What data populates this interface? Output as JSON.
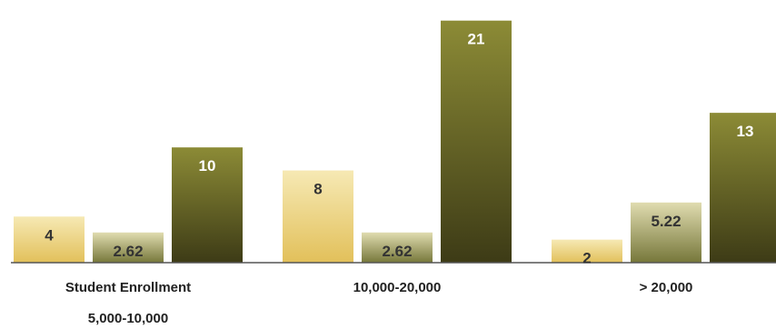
{
  "chart_data": {
    "type": "bar",
    "categories": [
      [
        "Student Enrollment",
        "5,000-10,000"
      ],
      [
        "10,000-20,000"
      ],
      [
        "> 20,000"
      ]
    ],
    "series": [
      {
        "values": [
          4,
          8,
          2
        ],
        "color": "#e8d486"
      },
      {
        "values": [
          2.62,
          2.62,
          5.22
        ],
        "color": "#9a9a5e"
      },
      {
        "values": [
          10,
          21,
          13
        ],
        "color": "#6b6b2a"
      }
    ],
    "value_labels": [
      [
        "4",
        "8",
        "2"
      ],
      [
        "2.62",
        "2.62",
        "5.22"
      ],
      [
        "10",
        "21",
        "13"
      ]
    ],
    "ylim": [
      0,
      22
    ],
    "grid": false,
    "legend": "none",
    "colors": {
      "baseline": "#555555",
      "label_text": "#222222",
      "value_text_light": "#333333",
      "value_text_dark": "#ffffff"
    }
  }
}
